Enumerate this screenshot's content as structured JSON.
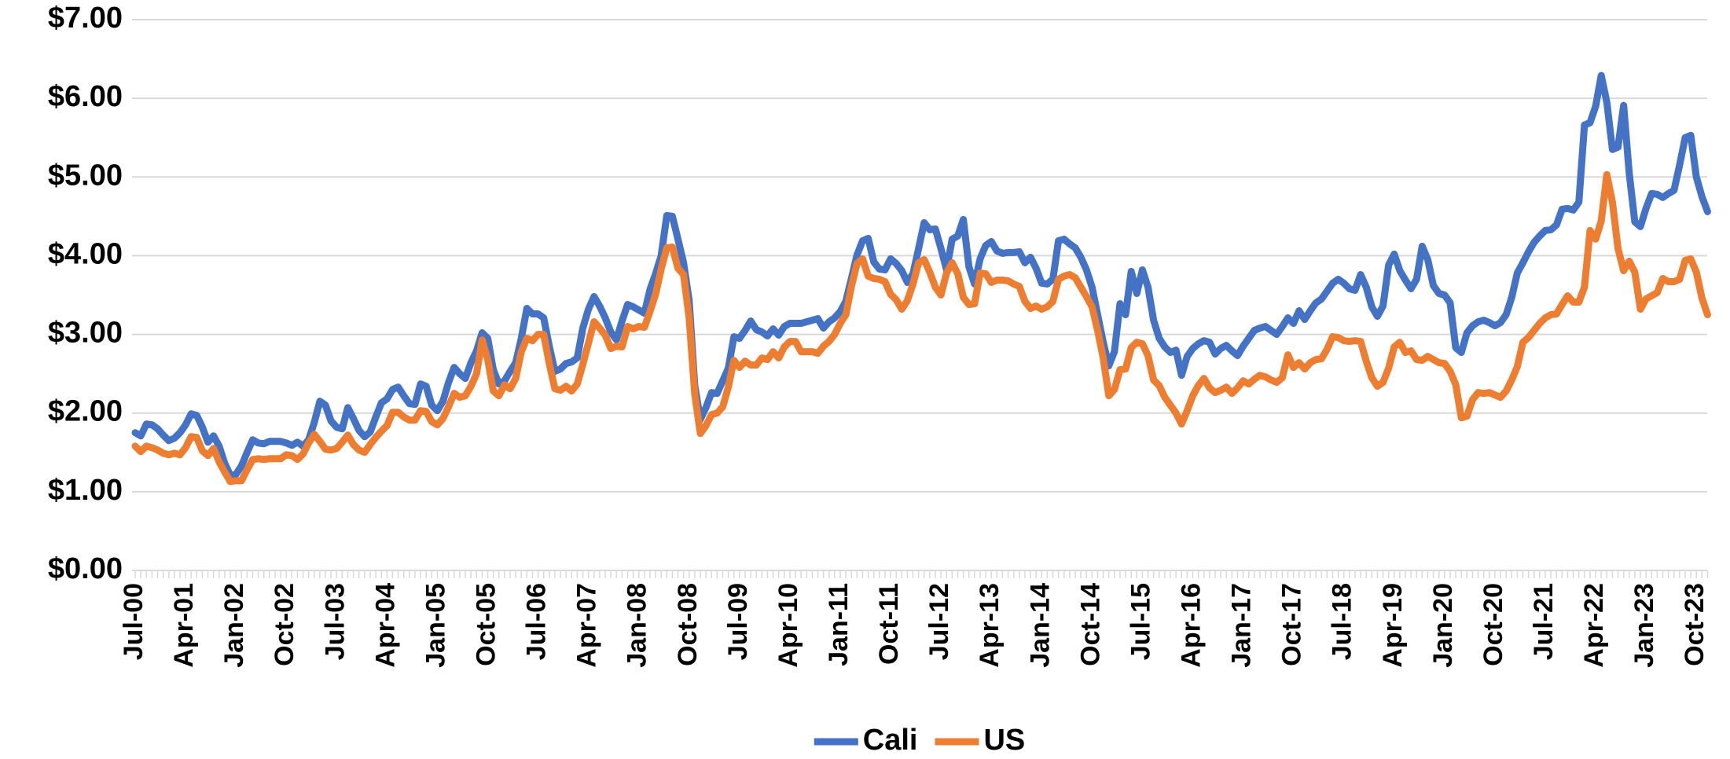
{
  "chart_data": {
    "type": "line",
    "categories": [
      "Jul-00",
      null,
      null,
      null,
      null,
      null,
      null,
      null,
      null,
      "Apr-01",
      null,
      null,
      null,
      null,
      null,
      null,
      null,
      null,
      "Jan-02",
      null,
      null,
      null,
      null,
      null,
      null,
      null,
      null,
      "Oct-02",
      null,
      null,
      null,
      null,
      null,
      null,
      null,
      null,
      "Jul-03",
      null,
      null,
      null,
      null,
      null,
      null,
      null,
      null,
      "Apr-04",
      null,
      null,
      null,
      null,
      null,
      null,
      null,
      null,
      "Jan-05",
      null,
      null,
      null,
      null,
      null,
      null,
      null,
      null,
      "Oct-05",
      null,
      null,
      null,
      null,
      null,
      null,
      null,
      null,
      "Jul-06",
      null,
      null,
      null,
      null,
      null,
      null,
      null,
      null,
      "Apr-07",
      null,
      null,
      null,
      null,
      null,
      null,
      null,
      null,
      "Jan-08",
      null,
      null,
      null,
      null,
      null,
      null,
      null,
      null,
      "Oct-08",
      null,
      null,
      null,
      null,
      null,
      null,
      null,
      null,
      "Jul-09",
      null,
      null,
      null,
      null,
      null,
      null,
      null,
      null,
      "Apr-10",
      null,
      null,
      null,
      null,
      null,
      null,
      null,
      null,
      "Jan-11",
      null,
      null,
      null,
      null,
      null,
      null,
      null,
      null,
      "Oct-11",
      null,
      null,
      null,
      null,
      null,
      null,
      null,
      null,
      "Jul-12",
      null,
      null,
      null,
      null,
      null,
      null,
      null,
      null,
      "Apr-13",
      null,
      null,
      null,
      null,
      null,
      null,
      null,
      null,
      "Jan-14",
      null,
      null,
      null,
      null,
      null,
      null,
      null,
      null,
      "Oct-14",
      null,
      null,
      null,
      null,
      null,
      null,
      null,
      null,
      "Jul-15",
      null,
      null,
      null,
      null,
      null,
      null,
      null,
      null,
      "Apr-16",
      null,
      null,
      null,
      null,
      null,
      null,
      null,
      null,
      "Jan-17",
      null,
      null,
      null,
      null,
      null,
      null,
      null,
      null,
      "Oct-17",
      null,
      null,
      null,
      null,
      null,
      null,
      null,
      null,
      "Jul-18",
      null,
      null,
      null,
      null,
      null,
      null,
      null,
      null,
      "Apr-19",
      null,
      null,
      null,
      null,
      null,
      null,
      null,
      null,
      "Jan-20",
      null,
      null,
      null,
      null,
      null,
      null,
      null,
      null,
      "Oct-20",
      null,
      null,
      null,
      null,
      null,
      null,
      null,
      null,
      "Jul-21",
      null,
      null,
      null,
      null,
      null,
      null,
      null,
      null,
      "Apr-22",
      null,
      null,
      null,
      null,
      null,
      null,
      null,
      null,
      "Jan-23",
      null,
      null,
      null,
      null,
      null,
      null,
      null,
      null,
      "Oct-23",
      null,
      null
    ],
    "series": [
      {
        "name": "Cali",
        "color": "#4472c4",
        "values": [
          1.75,
          1.71,
          1.86,
          1.85,
          1.8,
          1.72,
          1.65,
          1.68,
          1.75,
          1.85,
          1.99,
          1.97,
          1.82,
          1.63,
          1.71,
          1.58,
          1.36,
          1.21,
          1.22,
          1.33,
          1.5,
          1.66,
          1.62,
          1.61,
          1.64,
          1.64,
          1.64,
          1.62,
          1.59,
          1.63,
          1.58,
          1.66,
          1.88,
          2.15,
          2.1,
          1.9,
          1.82,
          1.8,
          2.07,
          1.93,
          1.78,
          1.7,
          1.76,
          1.95,
          2.13,
          2.18,
          2.3,
          2.33,
          2.22,
          2.12,
          2.11,
          2.37,
          2.34,
          2.1,
          2.03,
          2.15,
          2.39,
          2.58,
          2.5,
          2.44,
          2.64,
          2.79,
          3.02,
          2.95,
          2.55,
          2.37,
          2.41,
          2.53,
          2.64,
          2.95,
          3.33,
          3.26,
          3.26,
          3.21,
          2.85,
          2.53,
          2.56,
          2.63,
          2.65,
          2.7,
          3.08,
          3.32,
          3.48,
          3.36,
          3.21,
          3.03,
          2.93,
          3.17,
          3.38,
          3.35,
          3.31,
          3.27,
          3.57,
          3.77,
          4.0,
          4.51,
          4.5,
          4.21,
          3.91,
          3.43,
          2.35,
          1.92,
          2.07,
          2.26,
          2.25,
          2.41,
          2.57,
          2.97,
          2.95,
          3.05,
          3.17,
          3.06,
          3.03,
          2.98,
          3.07,
          2.99,
          3.1,
          3.14,
          3.14,
          3.14,
          3.16,
          3.18,
          3.2,
          3.08,
          3.16,
          3.21,
          3.29,
          3.42,
          3.71,
          4.01,
          4.19,
          4.22,
          3.92,
          3.83,
          3.82,
          3.96,
          3.9,
          3.81,
          3.66,
          3.77,
          4.09,
          4.42,
          4.33,
          4.34,
          4.09,
          3.82,
          4.21,
          4.25,
          4.46,
          3.86,
          3.64,
          3.96,
          4.13,
          4.18,
          4.06,
          4.03,
          4.04,
          4.04,
          4.05,
          3.91,
          3.98,
          3.84,
          3.65,
          3.64,
          3.7,
          4.19,
          4.21,
          4.15,
          4.1,
          3.98,
          3.82,
          3.6,
          3.25,
          2.9,
          2.6,
          2.78,
          3.39,
          3.25,
          3.8,
          3.52,
          3.82,
          3.6,
          3.18,
          2.95,
          2.84,
          2.77,
          2.8,
          2.48,
          2.72,
          2.82,
          2.88,
          2.92,
          2.9,
          2.75,
          2.82,
          2.86,
          2.79,
          2.73,
          2.85,
          2.95,
          3.05,
          3.08,
          3.1,
          3.05,
          3.0,
          3.1,
          3.21,
          3.14,
          3.3,
          3.19,
          3.3,
          3.4,
          3.45,
          3.55,
          3.65,
          3.7,
          3.65,
          3.58,
          3.56,
          3.76,
          3.6,
          3.35,
          3.23,
          3.36,
          3.88,
          4.02,
          3.81,
          3.69,
          3.58,
          3.7,
          4.12,
          3.95,
          3.62,
          3.52,
          3.5,
          3.4,
          2.83,
          2.77,
          3.02,
          3.11,
          3.16,
          3.18,
          3.15,
          3.11,
          3.15,
          3.25,
          3.47,
          3.78,
          3.91,
          4.05,
          4.17,
          4.25,
          4.32,
          4.33,
          4.39,
          4.59,
          4.6,
          4.58,
          4.68,
          5.66,
          5.69,
          5.9,
          6.29,
          5.95,
          5.35,
          5.38,
          5.91,
          5.05,
          4.43,
          4.37,
          4.6,
          4.79,
          4.78,
          4.74,
          4.79,
          4.83,
          5.15,
          5.5,
          5.53,
          5.0,
          4.75,
          4.56
        ]
      },
      {
        "name": "US",
        "color": "#ed7d31",
        "values": [
          1.58,
          1.51,
          1.58,
          1.56,
          1.53,
          1.49,
          1.47,
          1.49,
          1.47,
          1.56,
          1.7,
          1.69,
          1.52,
          1.46,
          1.55,
          1.38,
          1.25,
          1.13,
          1.14,
          1.14,
          1.28,
          1.41,
          1.42,
          1.41,
          1.42,
          1.42,
          1.42,
          1.47,
          1.46,
          1.41,
          1.48,
          1.62,
          1.73,
          1.64,
          1.54,
          1.53,
          1.55,
          1.63,
          1.72,
          1.6,
          1.53,
          1.5,
          1.6,
          1.69,
          1.77,
          1.84,
          2.01,
          2.01,
          1.95,
          1.91,
          1.91,
          2.03,
          2.02,
          1.89,
          1.85,
          1.93,
          2.08,
          2.25,
          2.2,
          2.22,
          2.34,
          2.5,
          2.93,
          2.68,
          2.28,
          2.22,
          2.36,
          2.31,
          2.44,
          2.78,
          2.95,
          2.92,
          3.0,
          3.0,
          2.63,
          2.31,
          2.29,
          2.34,
          2.28,
          2.37,
          2.62,
          2.89,
          3.16,
          3.08,
          2.99,
          2.82,
          2.85,
          2.84,
          3.1,
          3.07,
          3.1,
          3.09,
          3.29,
          3.51,
          3.83,
          4.1,
          4.11,
          3.84,
          3.76,
          3.21,
          2.24,
          1.74,
          1.84,
          1.98,
          2.0,
          2.08,
          2.33,
          2.67,
          2.58,
          2.66,
          2.61,
          2.61,
          2.7,
          2.68,
          2.78,
          2.7,
          2.84,
          2.91,
          2.91,
          2.78,
          2.78,
          2.78,
          2.76,
          2.85,
          2.91,
          3.0,
          3.14,
          3.25,
          3.61,
          3.9,
          3.96,
          3.74,
          3.71,
          3.7,
          3.67,
          3.51,
          3.44,
          3.32,
          3.43,
          3.64,
          3.91,
          3.95,
          3.79,
          3.6,
          3.5,
          3.78,
          3.91,
          3.77,
          3.47,
          3.38,
          3.39,
          3.78,
          3.77,
          3.66,
          3.69,
          3.69,
          3.68,
          3.64,
          3.61,
          3.42,
          3.33,
          3.36,
          3.32,
          3.35,
          3.42,
          3.7,
          3.74,
          3.76,
          3.72,
          3.6,
          3.48,
          3.35,
          3.05,
          2.7,
          2.22,
          2.3,
          2.55,
          2.56,
          2.83,
          2.9,
          2.88,
          2.73,
          2.42,
          2.35,
          2.2,
          2.1,
          2.0,
          1.86,
          2.03,
          2.22,
          2.35,
          2.44,
          2.32,
          2.26,
          2.29,
          2.33,
          2.25,
          2.32,
          2.41,
          2.37,
          2.43,
          2.48,
          2.46,
          2.42,
          2.39,
          2.45,
          2.74,
          2.58,
          2.64,
          2.56,
          2.64,
          2.68,
          2.69,
          2.81,
          2.97,
          2.96,
          2.92,
          2.91,
          2.92,
          2.91,
          2.66,
          2.45,
          2.34,
          2.39,
          2.57,
          2.84,
          2.9,
          2.77,
          2.79,
          2.68,
          2.67,
          2.72,
          2.68,
          2.64,
          2.63,
          2.53,
          2.36,
          1.94,
          1.96,
          2.17,
          2.26,
          2.25,
          2.26,
          2.23,
          2.2,
          2.28,
          2.42,
          2.59,
          2.9,
          2.96,
          3.05,
          3.14,
          3.21,
          3.25,
          3.26,
          3.38,
          3.49,
          3.41,
          3.41,
          3.6,
          4.32,
          4.21,
          4.44,
          5.03,
          4.68,
          4.09,
          3.81,
          3.93,
          3.79,
          3.32,
          3.45,
          3.49,
          3.53,
          3.71,
          3.67,
          3.67,
          3.7,
          3.94,
          3.96,
          3.79,
          3.46,
          3.25
        ]
      }
    ],
    "ylim": [
      0,
      7
    ],
    "yticks": [
      {
        "value": 0,
        "label": "$0.00"
      },
      {
        "value": 1,
        "label": "$1.00"
      },
      {
        "value": 2,
        "label": "$2.00"
      },
      {
        "value": 3,
        "label": "$3.00"
      },
      {
        "value": 4,
        "label": "$4.00"
      },
      {
        "value": 5,
        "label": "$5.00"
      },
      {
        "value": 6,
        "label": "$6.00"
      },
      {
        "value": 7,
        "label": "$7.00"
      }
    ],
    "grid": true,
    "legend": "bottom"
  }
}
